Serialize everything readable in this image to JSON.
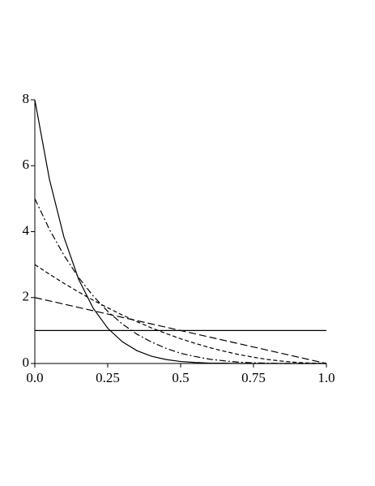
{
  "chart_data": {
    "type": "line",
    "x": [
      0,
      0.05,
      0.1,
      0.15,
      0.2,
      0.25,
      0.3,
      0.35,
      0.4,
      0.45,
      0.5,
      0.55,
      0.6,
      0.65,
      0.7,
      0.75,
      0.8,
      0.85,
      0.9,
      0.95,
      1
    ],
    "series": [
      {
        "color": "#000000",
        "style": "solid",
        "values": [
          1,
          1,
          1,
          1,
          1,
          1,
          1,
          1,
          1,
          1,
          1,
          1,
          1,
          1,
          1,
          1,
          1,
          1,
          1,
          1,
          1
        ]
      },
      {
        "color": "#000000",
        "style": "longdash",
        "values": [
          2,
          1.9,
          1.8,
          1.7,
          1.6,
          1.5,
          1.4,
          1.3,
          1.2,
          1.1,
          1,
          0.9,
          0.8,
          0.7,
          0.6,
          0.5,
          0.4,
          0.3,
          0.2,
          0.1,
          0
        ]
      },
      {
        "color": "#000000",
        "style": "dashed",
        "values": [
          3,
          2.71,
          2.43,
          2.17,
          1.92,
          1.69,
          1.47,
          1.27,
          1.08,
          0.91,
          0.75,
          0.61,
          0.48,
          0.37,
          0.27,
          0.19,
          0.12,
          0.07,
          0.03,
          0.01,
          0
        ]
      },
      {
        "color": "#000000",
        "style": "dashdot",
        "values": [
          5,
          4.07,
          3.28,
          2.61,
          2.05,
          1.58,
          1.2,
          0.89,
          0.65,
          0.46,
          0.31,
          0.21,
          0.13,
          0.08,
          0.04,
          0.02,
          0.01,
          0,
          0,
          0,
          0
        ]
      },
      {
        "color": "#000000",
        "style": "solid",
        "values": [
          8,
          5.59,
          3.83,
          2.56,
          1.68,
          1.07,
          0.66,
          0.39,
          0.22,
          0.12,
          0.06,
          0.03,
          0.01,
          0.01,
          0,
          0,
          0,
          0,
          0,
          0,
          0
        ]
      }
    ],
    "xlim": [
      0,
      1
    ],
    "xticks": [
      {
        "value": 0,
        "label": "0.0"
      },
      0.25,
      0.5,
      0.75,
      {
        "value": 1,
        "label": "1.0"
      }
    ],
    "ylim": [
      0,
      8
    ],
    "yticks": [
      0,
      2,
      4,
      6,
      8
    ]
  }
}
